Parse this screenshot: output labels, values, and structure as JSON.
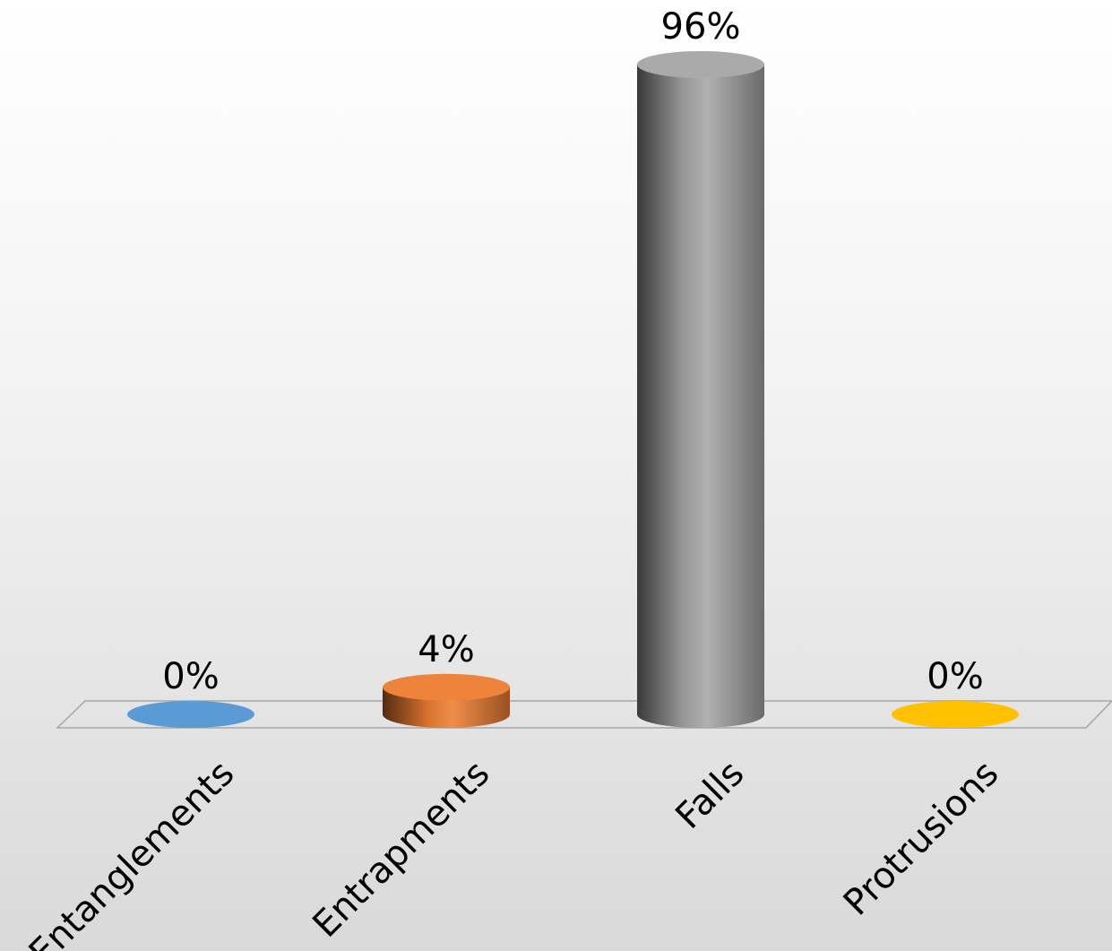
{
  "chart_data": {
    "type": "bar",
    "style": "3d-cylinder",
    "categories": [
      "Entanglements",
      "Entrapments",
      "Falls",
      "Protrusions"
    ],
    "values": [
      0,
      4,
      96,
      0
    ],
    "value_labels": [
      "0%",
      "4%",
      "96%",
      "0%"
    ],
    "colors": [
      "#5b9bd5",
      "#ed7d31",
      "#a5a5a5",
      "#ffc000"
    ],
    "unit": "%",
    "ylim": [
      0,
      96
    ],
    "grid": false,
    "legend": "none"
  }
}
